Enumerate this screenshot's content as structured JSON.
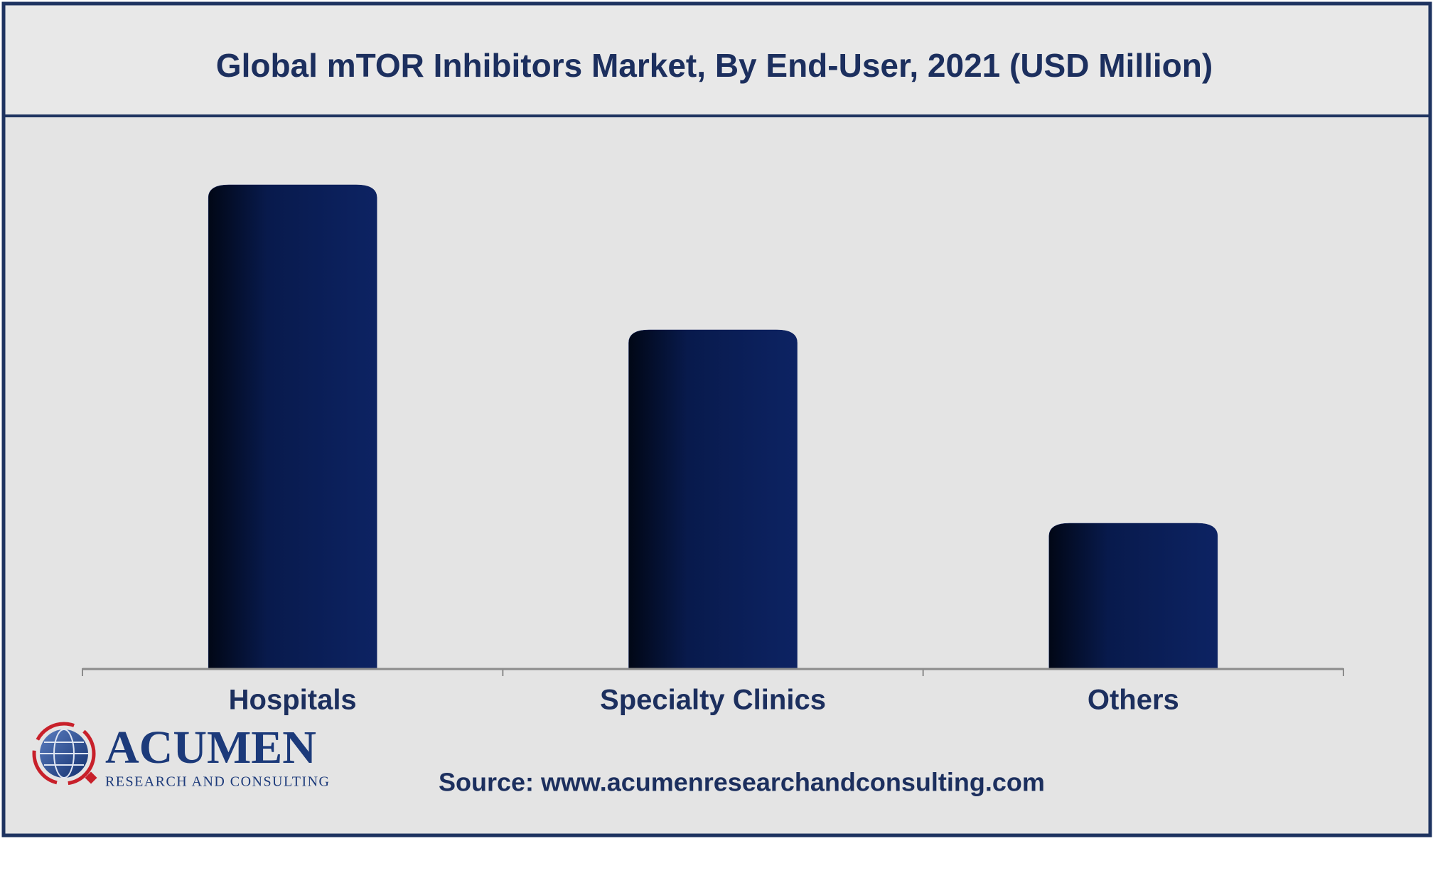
{
  "chart_data": {
    "type": "bar",
    "title": "Global mTOR Inhibitors Market, By End-User, 2021 (USD Million)",
    "categories": [
      "Hospitals",
      "Specialty Clinics",
      "Others"
    ],
    "values": [
      100,
      70,
      30
    ],
    "ylim": [
      0,
      100
    ],
    "color": "#0b1f5c",
    "grid": false,
    "source": "Source: www.acumenresearchandconsulting.com",
    "logo": {
      "name": "ACUMEN",
      "tagline": "RESEARCH AND CONSULTING"
    }
  }
}
